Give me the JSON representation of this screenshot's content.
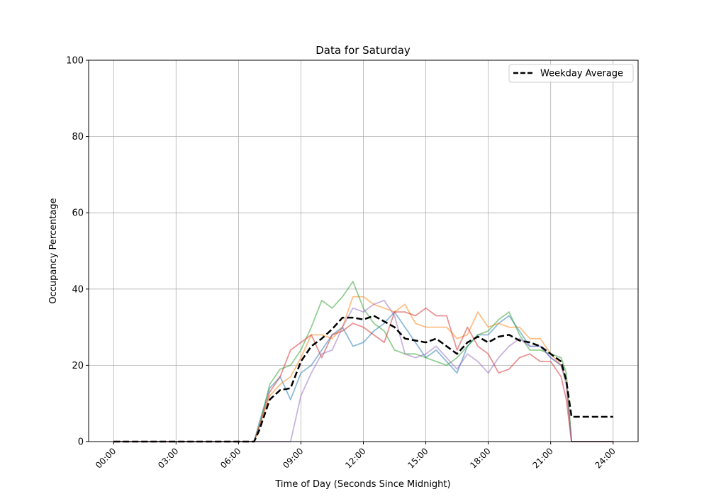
{
  "chart_data": {
    "type": "line",
    "title": "Data for Saturday",
    "xlabel": "Time of Day (Seconds Since Midnight)",
    "ylabel": "Occupancy Percentage",
    "ylim": [
      0,
      100
    ],
    "xlim_hours": [
      -1.2,
      25.2
    ],
    "grid": true,
    "legend_placement": "top-right",
    "x_tick_labels": [
      "00:00",
      "03:00",
      "06:00",
      "09:00",
      "12:00",
      "15:00",
      "18:00",
      "21:00",
      "24:00"
    ],
    "x_tick_hours": [
      0,
      3,
      6,
      9,
      12,
      15,
      18,
      21,
      24
    ],
    "y_ticks": [
      0,
      20,
      40,
      60,
      80,
      100
    ],
    "x_hours": [
      0,
      6.75,
      7,
      7.5,
      8,
      8.5,
      9,
      9.5,
      10,
      10.5,
      11,
      11.5,
      12,
      12.5,
      13,
      13.5,
      14,
      14.5,
      15,
      15.5,
      16,
      16.5,
      17,
      17.5,
      18,
      18.5,
      19,
      19.5,
      20,
      20.5,
      21,
      21.5,
      21.75,
      22,
      24
    ],
    "series": [
      {
        "color": "#1f77b4",
        "values": [
          0,
          0,
          5,
          14,
          17,
          11,
          18,
          20,
          24,
          28,
          30,
          25,
          26,
          29,
          31,
          34,
          30,
          26,
          22,
          24,
          21,
          18,
          25,
          28,
          28,
          31,
          33,
          29,
          25,
          25,
          22,
          20,
          16,
          0,
          0
        ]
      },
      {
        "color": "#ff7f0e",
        "values": [
          0,
          0,
          4,
          12,
          15,
          17,
          22,
          28,
          28,
          27,
          30,
          38,
          38,
          36,
          35,
          34,
          36,
          31,
          30,
          30,
          30,
          27,
          28,
          34,
          30,
          31,
          30,
          30,
          27,
          27,
          23,
          20,
          16,
          0,
          0
        ]
      },
      {
        "color": "#2ca02c",
        "values": [
          0,
          0,
          4,
          15,
          19,
          20,
          24,
          30,
          37,
          35,
          38,
          42,
          35,
          31,
          29,
          24,
          23,
          23,
          22,
          21,
          20,
          22,
          25,
          28,
          29,
          32,
          34,
          28,
          24,
          24,
          23,
          22,
          18,
          0,
          0
        ]
      },
      {
        "color": "#d62728",
        "values": [
          0,
          0,
          4,
          13,
          17,
          24,
          26,
          28,
          22,
          28,
          29,
          31,
          30,
          28,
          26,
          34,
          34,
          33,
          35,
          33,
          33,
          24,
          30,
          25,
          23,
          18,
          19,
          22,
          23,
          21,
          21,
          17,
          11,
          0,
          0
        ]
      },
      {
        "color": "#9467bd",
        "values": [
          0,
          0,
          0,
          0,
          0,
          0,
          12,
          18,
          23,
          24,
          30,
          35,
          34,
          36,
          37,
          33,
          23,
          22,
          23,
          25,
          22,
          19,
          23,
          21,
          18,
          22,
          25,
          27,
          25,
          25,
          22,
          20,
          15,
          0,
          0
        ]
      },
      {
        "name": "Weekday Average",
        "color": "#000000",
        "style": "dashed",
        "values": [
          0,
          0,
          3,
          11,
          13.5,
          14,
          21,
          25,
          27,
          29.5,
          32.5,
          32.5,
          32,
          33,
          31.5,
          30,
          27,
          26.5,
          26,
          27,
          25,
          23,
          26,
          27.5,
          26,
          27.5,
          28,
          26.5,
          26,
          25,
          23,
          21,
          16,
          6.5,
          6.5
        ]
      }
    ]
  }
}
